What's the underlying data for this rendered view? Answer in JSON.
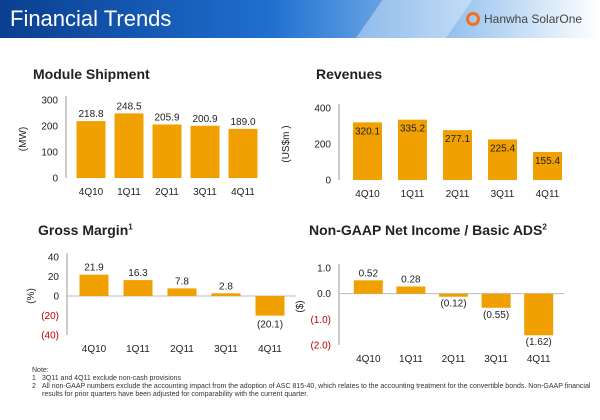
{
  "header": {
    "title": "Financial Trends",
    "logo_text": "Hanwha SolarOne",
    "accent": "#f36f21"
  },
  "bar_color": "#f0a000",
  "neg_color": "#c00000",
  "chart_data": [
    {
      "id": "c0",
      "type": "bar",
      "title": "Module Shipment",
      "title_sup": "",
      "ylabel": "(MW)",
      "categories": [
        "4Q10",
        "1Q11",
        "2Q11",
        "3Q11",
        "4Q11"
      ],
      "values": [
        218.8,
        248.5,
        205.9,
        200.9,
        189.0
      ],
      "labels": [
        "218.8",
        "248.5",
        "205.9",
        "200.9",
        "189.0"
      ],
      "ylim": [
        0,
        300
      ],
      "ticks": [
        0,
        100,
        200,
        300
      ],
      "tick_labels": [
        "0",
        "100",
        "200",
        "300"
      ]
    },
    {
      "id": "c1",
      "type": "bar",
      "title": "Revenues",
      "title_sup": "",
      "ylabel": "(US$m )",
      "categories": [
        "4Q10",
        "1Q11",
        "2Q11",
        "3Q11",
        "4Q11"
      ],
      "values": [
        320.1,
        335.2,
        277.1,
        225.4,
        155.4
      ],
      "labels": [
        "320.1",
        "335.2",
        "277.1",
        "225.4",
        "155.4"
      ],
      "ylim": [
        0,
        400
      ],
      "ticks": [
        0,
        200,
        400
      ],
      "tick_labels": [
        "0",
        "200",
        "400"
      ]
    },
    {
      "id": "c2",
      "type": "bar",
      "title": "Gross Margin",
      "title_sup": "1",
      "ylabel": "(%)",
      "categories": [
        "4Q10",
        "1Q11",
        "2Q11",
        "3Q11",
        "4Q11"
      ],
      "values": [
        21.9,
        16.3,
        7.8,
        2.8,
        -20.1
      ],
      "labels": [
        "21.9",
        "16.3",
        "7.8",
        "2.8",
        "(20.1)"
      ],
      "ylim": [
        -40,
        40
      ],
      "ticks": [
        -40,
        -20,
        0,
        20,
        40
      ],
      "tick_labels": [
        "(40)",
        "(20)",
        "0",
        "20",
        "40"
      ]
    },
    {
      "id": "c3",
      "type": "bar",
      "title": "Non-GAAP Net Income / Basic ADS",
      "title_sup": "2",
      "ylabel": "($)",
      "categories": [
        "4Q10",
        "1Q11",
        "2Q11",
        "3Q11",
        "4Q11"
      ],
      "values": [
        0.52,
        0.28,
        -0.12,
        -0.55,
        -1.62
      ],
      "labels": [
        "0.52",
        "0.28",
        "(0.12)",
        "(0.55)",
        "(1.62)"
      ],
      "ylim": [
        -2.0,
        1.0
      ],
      "ticks": [
        -2.0,
        -1.0,
        0,
        1.0
      ],
      "tick_labels": [
        "(2.0)",
        "(1.0)",
        "0.0",
        "1.0"
      ]
    }
  ],
  "notes": {
    "heading": "Note:",
    "items": [
      {
        "num": "1",
        "text": "3Q11 and 4Q11 exclude non-cash provisions"
      },
      {
        "num": "2",
        "text": "All non-GAAP numbers exclude the accounting impact from the adoption of ASC 815-40, which relates to the accounting treatment for the convertible bonds. Non-GAAP financial results for prior quarters have been adjusted for comparability with the current quarter."
      }
    ]
  }
}
